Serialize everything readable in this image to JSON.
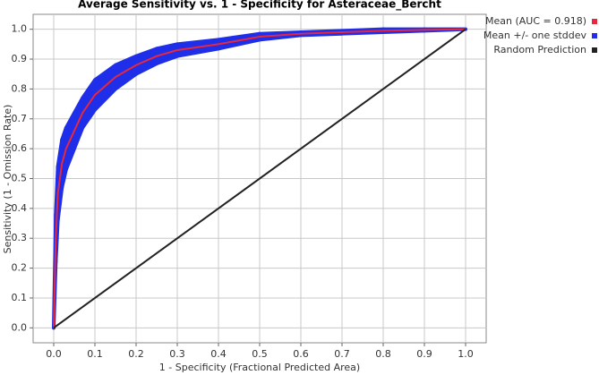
{
  "chart_data": {
    "type": "line",
    "title": "Average Sensitivity vs. 1 - Specificity for Asteraceae_Bercht",
    "x_label": "1 - Specificity (Fractional Predicted Area)",
    "y_label": "Sensitivity (1 - Omission Rate)",
    "xlim": [
      -0.05,
      1.05
    ],
    "ylim": [
      -0.05,
      1.05
    ],
    "xticks": [
      {
        "value": 0,
        "label": "0.0"
      },
      0.1,
      0.2,
      0.3,
      0.4,
      0.5,
      0.6,
      0.7,
      0.8,
      0.9,
      {
        "value": 1,
        "label": "1.0"
      }
    ],
    "yticks": [
      {
        "value": 0,
        "label": "0.0"
      },
      0.1,
      0.2,
      0.3,
      0.4,
      0.5,
      0.6,
      0.7,
      0.8,
      0.9,
      {
        "value": 1,
        "label": "1.0"
      }
    ],
    "grid": true,
    "series": [
      {
        "name": "Mean (AUC = 0.918)",
        "color": "#e8283a",
        "x": [
          0,
          0.005,
          0.01,
          0.02,
          0.03,
          0.05,
          0.07,
          0.1,
          0.15,
          0.2,
          0.25,
          0.3,
          0.4,
          0.5,
          0.6,
          0.7,
          0.8,
          0.9,
          1
        ],
        "values": [
          0,
          0.3,
          0.45,
          0.55,
          0.6,
          0.66,
          0.72,
          0.78,
          0.84,
          0.88,
          0.91,
          0.93,
          0.95,
          0.975,
          0.985,
          0.99,
          0.995,
          0.998,
          1
        ]
      },
      {
        "name": "Mean +/- one stddev",
        "color": "#1f2ee8",
        "x": [
          0,
          0.005,
          0.01,
          0.02,
          0.03,
          0.05,
          0.07,
          0.1,
          0.15,
          0.2,
          0.25,
          0.3,
          0.4,
          0.5,
          0.6,
          0.7,
          0.8,
          0.9,
          1
        ],
        "lower": [
          0,
          0.22,
          0.36,
          0.47,
          0.53,
          0.6,
          0.67,
          0.73,
          0.8,
          0.85,
          0.885,
          0.91,
          0.935,
          0.965,
          0.98,
          0.985,
          0.99,
          0.995,
          1
        ],
        "upper": [
          0,
          0.38,
          0.54,
          0.63,
          0.67,
          0.72,
          0.77,
          0.83,
          0.88,
          0.91,
          0.935,
          0.95,
          0.965,
          0.985,
          0.99,
          0.995,
          1,
          1,
          1
        ]
      },
      {
        "name": "Random Prediction",
        "color": "#222222",
        "x": [
          0,
          1
        ],
        "values": [
          0,
          1
        ]
      }
    ]
  }
}
